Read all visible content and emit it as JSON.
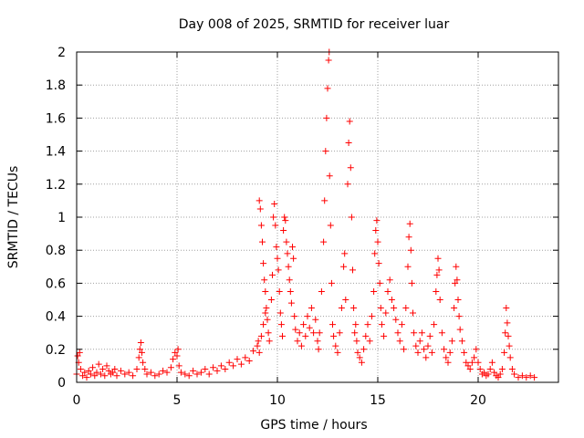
{
  "chart_data": {
    "type": "scatter",
    "title": "Day 008 of 2025, SRMTID for receiver luar",
    "xlabel": "GPS time / hours",
    "ylabel": "SRMTID / TECUs",
    "xlim": [
      0,
      24
    ],
    "ylim": [
      0,
      2
    ],
    "xticks": [
      0,
      5,
      10,
      15,
      20
    ],
    "xtick_labels": [
      "0",
      "5",
      "10",
      "15",
      "20"
    ],
    "yticks": [
      0,
      0.2,
      0.4,
      0.6,
      0.8,
      1,
      1.2,
      1.4,
      1.6,
      1.8,
      2
    ],
    "ytick_labels": [
      "0",
      "0.2",
      "0.4",
      "0.6",
      "0.8",
      "1",
      "1.2",
      "1.4",
      "1.6",
      "1.8",
      "2"
    ],
    "grid": true,
    "marker": "+",
    "color": "#ff0000",
    "series": [
      {
        "name": "SRMTID",
        "points": [
          [
            0.0,
            0.05
          ],
          [
            0.05,
            0.16
          ],
          [
            0.1,
            0.12
          ],
          [
            0.15,
            0.18
          ],
          [
            0.2,
            0.08
          ],
          [
            0.3,
            0.04
          ],
          [
            0.4,
            0.06
          ],
          [
            0.5,
            0.03
          ],
          [
            0.6,
            0.07
          ],
          [
            0.7,
            0.05
          ],
          [
            0.8,
            0.09
          ],
          [
            0.9,
            0.04
          ],
          [
            1.0,
            0.06
          ],
          [
            1.1,
            0.11
          ],
          [
            1.2,
            0.05
          ],
          [
            1.3,
            0.08
          ],
          [
            1.4,
            0.04
          ],
          [
            1.5,
            0.1
          ],
          [
            1.6,
            0.07
          ],
          [
            1.7,
            0.05
          ],
          [
            1.8,
            0.06
          ],
          [
            1.9,
            0.08
          ],
          [
            2.0,
            0.04
          ],
          [
            2.2,
            0.07
          ],
          [
            2.4,
            0.05
          ],
          [
            2.6,
            0.06
          ],
          [
            2.8,
            0.04
          ],
          [
            3.0,
            0.08
          ],
          [
            3.1,
            0.15
          ],
          [
            3.15,
            0.2
          ],
          [
            3.2,
            0.24
          ],
          [
            3.25,
            0.18
          ],
          [
            3.3,
            0.12
          ],
          [
            3.4,
            0.08
          ],
          [
            3.5,
            0.05
          ],
          [
            3.7,
            0.06
          ],
          [
            3.9,
            0.04
          ],
          [
            4.1,
            0.05
          ],
          [
            4.3,
            0.07
          ],
          [
            4.5,
            0.06
          ],
          [
            4.7,
            0.09
          ],
          [
            4.8,
            0.14
          ],
          [
            4.9,
            0.18
          ],
          [
            5.0,
            0.16
          ],
          [
            5.05,
            0.2
          ],
          [
            5.1,
            0.1
          ],
          [
            5.2,
            0.06
          ],
          [
            5.4,
            0.05
          ],
          [
            5.6,
            0.04
          ],
          [
            5.8,
            0.07
          ],
          [
            6.0,
            0.05
          ],
          [
            6.2,
            0.06
          ],
          [
            6.4,
            0.08
          ],
          [
            6.6,
            0.05
          ],
          [
            6.8,
            0.09
          ],
          [
            7.0,
            0.07
          ],
          [
            7.2,
            0.1
          ],
          [
            7.4,
            0.08
          ],
          [
            7.6,
            0.12
          ],
          [
            7.8,
            0.1
          ],
          [
            8.0,
            0.14
          ],
          [
            8.2,
            0.11
          ],
          [
            8.4,
            0.15
          ],
          [
            8.6,
            0.13
          ],
          [
            8.8,
            0.19
          ],
          [
            9.0,
            0.22
          ],
          [
            9.05,
            0.25
          ],
          [
            9.1,
            0.18
          ],
          [
            9.1,
            1.1
          ],
          [
            9.15,
            1.05
          ],
          [
            9.2,
            0.95
          ],
          [
            9.25,
            0.85
          ],
          [
            9.3,
            0.72
          ],
          [
            9.35,
            0.62
          ],
          [
            9.4,
            0.55
          ],
          [
            9.45,
            0.45
          ],
          [
            9.5,
            0.38
          ],
          [
            9.55,
            0.3
          ],
          [
            9.2,
            0.28
          ],
          [
            9.3,
            0.35
          ],
          [
            9.4,
            0.42
          ],
          [
            9.6,
            0.25
          ],
          [
            9.7,
            0.5
          ],
          [
            9.75,
            0.65
          ],
          [
            9.8,
            1.0
          ],
          [
            9.85,
            1.08
          ],
          [
            9.9,
            0.95
          ],
          [
            9.95,
            0.82
          ],
          [
            10.0,
            0.75
          ],
          [
            10.05,
            0.68
          ],
          [
            10.1,
            0.55
          ],
          [
            10.15,
            0.42
          ],
          [
            10.2,
            0.35
          ],
          [
            10.25,
            0.28
          ],
          [
            10.3,
            0.92
          ],
          [
            10.35,
            1.0
          ],
          [
            10.4,
            0.98
          ],
          [
            10.45,
            0.85
          ],
          [
            10.5,
            0.78
          ],
          [
            10.55,
            0.7
          ],
          [
            10.6,
            0.62
          ],
          [
            10.65,
            0.55
          ],
          [
            10.7,
            0.48
          ],
          [
            10.75,
            0.82
          ],
          [
            10.8,
            0.75
          ],
          [
            10.85,
            0.4
          ],
          [
            10.9,
            0.32
          ],
          [
            11.0,
            0.25
          ],
          [
            11.1,
            0.3
          ],
          [
            11.2,
            0.22
          ],
          [
            11.3,
            0.35
          ],
          [
            11.4,
            0.28
          ],
          [
            11.5,
            0.4
          ],
          [
            11.6,
            0.33
          ],
          [
            11.7,
            0.45
          ],
          [
            11.8,
            0.3
          ],
          [
            11.9,
            0.38
          ],
          [
            12.0,
            0.25
          ],
          [
            12.05,
            0.2
          ],
          [
            12.1,
            0.3
          ],
          [
            12.2,
            0.55
          ],
          [
            12.3,
            0.85
          ],
          [
            12.35,
            1.1
          ],
          [
            12.4,
            1.4
          ],
          [
            12.45,
            1.6
          ],
          [
            12.5,
            1.78
          ],
          [
            12.55,
            1.95
          ],
          [
            12.58,
            2.0
          ],
          [
            12.6,
            1.25
          ],
          [
            12.65,
            0.95
          ],
          [
            12.7,
            0.6
          ],
          [
            12.75,
            0.35
          ],
          [
            12.8,
            0.28
          ],
          [
            12.9,
            0.22
          ],
          [
            13.0,
            0.18
          ],
          [
            13.1,
            0.3
          ],
          [
            13.2,
            0.45
          ],
          [
            13.3,
            0.7
          ],
          [
            13.35,
            0.78
          ],
          [
            13.4,
            0.5
          ],
          [
            13.5,
            1.2
          ],
          [
            13.55,
            1.45
          ],
          [
            13.6,
            1.58
          ],
          [
            13.65,
            1.3
          ],
          [
            13.7,
            1.0
          ],
          [
            13.75,
            0.68
          ],
          [
            13.8,
            0.45
          ],
          [
            13.85,
            0.3
          ],
          [
            13.9,
            0.35
          ],
          [
            13.95,
            0.25
          ],
          [
            14.0,
            0.18
          ],
          [
            14.1,
            0.15
          ],
          [
            14.2,
            0.12
          ],
          [
            14.3,
            0.2
          ],
          [
            14.4,
            0.28
          ],
          [
            14.5,
            0.35
          ],
          [
            14.6,
            0.25
          ],
          [
            14.7,
            0.4
          ],
          [
            14.8,
            0.55
          ],
          [
            14.85,
            0.78
          ],
          [
            14.9,
            0.92
          ],
          [
            14.95,
            0.98
          ],
          [
            15.0,
            0.85
          ],
          [
            15.05,
            0.72
          ],
          [
            15.1,
            0.6
          ],
          [
            15.15,
            0.45
          ],
          [
            15.2,
            0.35
          ],
          [
            15.3,
            0.28
          ],
          [
            15.4,
            0.42
          ],
          [
            15.5,
            0.55
          ],
          [
            15.6,
            0.62
          ],
          [
            15.7,
            0.5
          ],
          [
            15.8,
            0.45
          ],
          [
            15.9,
            0.38
          ],
          [
            16.0,
            0.3
          ],
          [
            16.1,
            0.25
          ],
          [
            16.2,
            0.35
          ],
          [
            16.3,
            0.2
          ],
          [
            16.4,
            0.45
          ],
          [
            16.5,
            0.7
          ],
          [
            16.55,
            0.88
          ],
          [
            16.6,
            0.96
          ],
          [
            16.65,
            0.8
          ],
          [
            16.7,
            0.6
          ],
          [
            16.75,
            0.42
          ],
          [
            16.8,
            0.3
          ],
          [
            16.9,
            0.22
          ],
          [
            17.0,
            0.18
          ],
          [
            17.1,
            0.25
          ],
          [
            17.2,
            0.3
          ],
          [
            17.3,
            0.2
          ],
          [
            17.4,
            0.15
          ],
          [
            17.5,
            0.22
          ],
          [
            17.6,
            0.28
          ],
          [
            17.7,
            0.18
          ],
          [
            17.8,
            0.35
          ],
          [
            17.9,
            0.55
          ],
          [
            17.95,
            0.65
          ],
          [
            18.0,
            0.75
          ],
          [
            18.05,
            0.68
          ],
          [
            18.1,
            0.5
          ],
          [
            18.2,
            0.3
          ],
          [
            18.3,
            0.2
          ],
          [
            18.4,
            0.15
          ],
          [
            18.5,
            0.12
          ],
          [
            18.6,
            0.18
          ],
          [
            18.7,
            0.25
          ],
          [
            18.8,
            0.45
          ],
          [
            18.85,
            0.6
          ],
          [
            18.9,
            0.7
          ],
          [
            18.95,
            0.62
          ],
          [
            19.0,
            0.5
          ],
          [
            19.05,
            0.4
          ],
          [
            19.1,
            0.32
          ],
          [
            19.2,
            0.25
          ],
          [
            19.3,
            0.18
          ],
          [
            19.4,
            0.12
          ],
          [
            19.5,
            0.1
          ],
          [
            19.6,
            0.08
          ],
          [
            19.7,
            0.12
          ],
          [
            19.8,
            0.15
          ],
          [
            19.9,
            0.2
          ],
          [
            20.0,
            0.12
          ],
          [
            20.1,
            0.08
          ],
          [
            20.2,
            0.05
          ],
          [
            20.3,
            0.06
          ],
          [
            20.4,
            0.04
          ],
          [
            20.5,
            0.05
          ],
          [
            20.6,
            0.08
          ],
          [
            20.7,
            0.12
          ],
          [
            20.8,
            0.06
          ],
          [
            20.9,
            0.04
          ],
          [
            21.0,
            0.03
          ],
          [
            21.1,
            0.05
          ],
          [
            21.2,
            0.08
          ],
          [
            21.3,
            0.18
          ],
          [
            21.35,
            0.3
          ],
          [
            21.4,
            0.45
          ],
          [
            21.45,
            0.36
          ],
          [
            21.5,
            0.28
          ],
          [
            21.55,
            0.22
          ],
          [
            21.6,
            0.15
          ],
          [
            21.7,
            0.08
          ],
          [
            21.8,
            0.05
          ],
          [
            22.0,
            0.03
          ],
          [
            22.2,
            0.04
          ],
          [
            22.4,
            0.03
          ],
          [
            22.6,
            0.04
          ],
          [
            22.8,
            0.03
          ]
        ]
      }
    ]
  }
}
